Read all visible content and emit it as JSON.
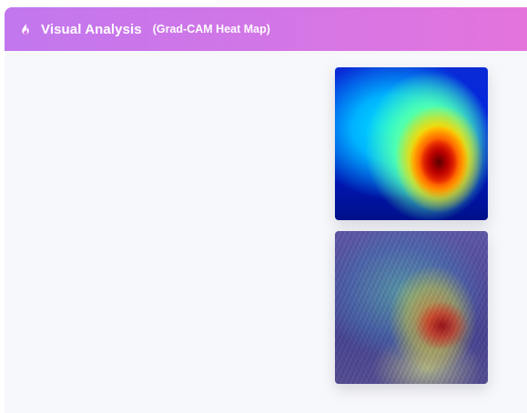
{
  "header": {
    "title": "Visual Analysis",
    "subtitle": "(Grad-CAM Heat Map)",
    "icon": "flame-icon",
    "gradient_start": "#c277ee",
    "gradient_end": "#e574dc"
  },
  "images": [
    {
      "name": "grad-cam-heatmap-image"
    },
    {
      "name": "grad-cam-overlay-image"
    }
  ]
}
